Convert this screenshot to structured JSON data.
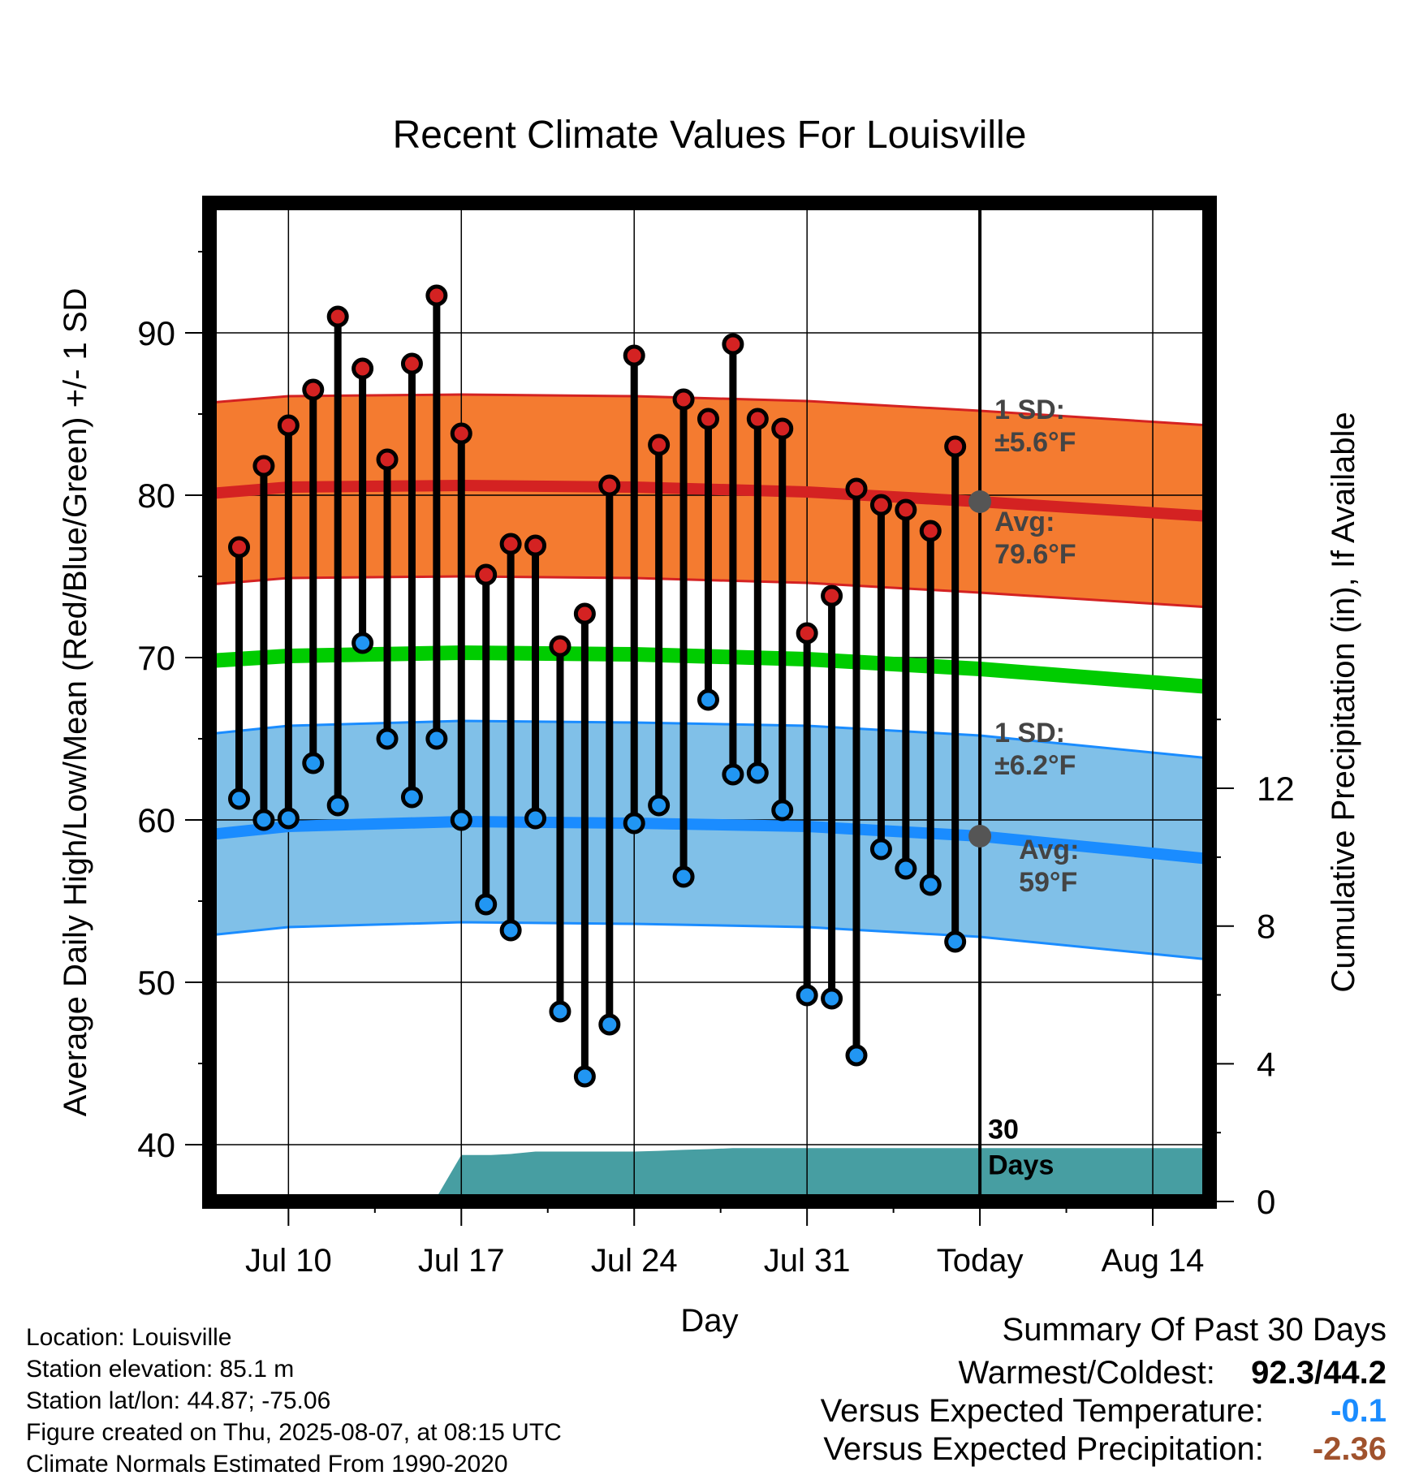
{
  "chart_data": {
    "type": "line",
    "title": "Recent Climate Values For Louisville",
    "xlabel": "Day",
    "ylabel": "Average Daily High/Low/Mean (Red/Blue/Green) +/- 1 SD",
    "ylabel_right": "Cumulative Precipitation (in), If Available",
    "x_tick_labels": [
      "Jul 10",
      "Jul 17",
      "Jul 24",
      "Jul 31",
      "Today",
      "Aug 14"
    ],
    "x_tick_days": [
      3,
      10,
      17,
      24,
      31,
      38
    ],
    "x_range": [
      -0.2,
      40.3
    ],
    "today_day": 31,
    "ylim": [
      36.5,
      98
    ],
    "y_ticks": [
      40,
      50,
      60,
      70,
      80,
      90
    ],
    "precip_ylim": [
      0,
      29
    ],
    "precip_ticks": [
      0,
      4,
      8,
      12
    ],
    "grid": true,
    "series": [
      {
        "name": "High",
        "day": [
          1,
          2,
          3,
          4,
          5,
          6,
          7,
          8,
          9,
          10,
          11,
          12,
          13,
          14,
          15,
          16,
          17,
          18,
          19,
          20,
          21,
          22,
          23,
          24,
          25,
          26,
          27,
          28,
          29,
          30
        ],
        "values": [
          76.8,
          81.8,
          84.3,
          86.5,
          91.0,
          87.8,
          82.2,
          88.1,
          92.3,
          83.8,
          75.1,
          77.0,
          76.9,
          70.7,
          72.7,
          80.6,
          88.6,
          83.1,
          85.9,
          84.7,
          89.3,
          84.7,
          84.1,
          71.5,
          73.8,
          80.4,
          79.4,
          79.1,
          77.8,
          83.0
        ]
      },
      {
        "name": "Low",
        "day": [
          1,
          2,
          3,
          4,
          5,
          6,
          7,
          8,
          9,
          10,
          11,
          12,
          13,
          14,
          15,
          16,
          17,
          18,
          19,
          20,
          21,
          22,
          23,
          24,
          25,
          26,
          27,
          28,
          29,
          30
        ],
        "values": [
          61.3,
          60.0,
          60.1,
          63.5,
          60.9,
          70.9,
          65.0,
          61.4,
          65.0,
          60.0,
          54.8,
          53.2,
          60.1,
          48.2,
          44.2,
          47.4,
          59.8,
          60.9,
          56.5,
          67.4,
          62.8,
          62.9,
          60.6,
          49.2,
          49.0,
          45.5,
          58.2,
          57.0,
          56.0,
          52.5
        ]
      },
      {
        "name": "Normal High",
        "day": [
          -0.2,
          3,
          10,
          17,
          24,
          31,
          40.3
        ],
        "values": [
          80.1,
          80.5,
          80.6,
          80.5,
          80.2,
          79.6,
          78.7
        ],
        "sd": 5.6
      },
      {
        "name": "Normal Mean",
        "day": [
          -0.2,
          3,
          10,
          17,
          24,
          31,
          40.3
        ],
        "values": [
          69.8,
          70.1,
          70.3,
          70.2,
          69.9,
          69.3,
          68.2
        ]
      },
      {
        "name": "Normal Low",
        "day": [
          -0.2,
          3,
          10,
          17,
          24,
          31,
          40.3
        ],
        "values": [
          59.1,
          59.6,
          59.9,
          59.8,
          59.6,
          59.0,
          57.6
        ],
        "sd": 6.2
      },
      {
        "name": "Cumulative Precipitation",
        "day": [
          -0.2,
          8.9,
          10,
          11.2,
          12,
          13,
          14,
          17,
          18,
          19,
          20,
          21,
          22,
          24,
          31,
          40.3
        ],
        "values": [
          0,
          0,
          1.35,
          1.35,
          1.38,
          1.45,
          1.45,
          1.45,
          1.47,
          1.5,
          1.52,
          1.55,
          1.55,
          1.55,
          1.55,
          1.55
        ]
      }
    ],
    "annotations": {
      "high_sd": "1 SD:\n±5.6°F",
      "high_avg": "Avg:\n79.6°F",
      "low_sd": "1 SD:\n±6.2°F",
      "low_avg": "Avg:\n59°F",
      "days": "30\nDays"
    },
    "colors": {
      "high_band": "#f47b30",
      "high_line": "#d42222",
      "low_band": "#80c0e8",
      "low_line": "#1a8cff",
      "mean_line": "#00cc00",
      "precip": "#479ea2",
      "high_dot": "#d42222",
      "low_dot": "#2196f3",
      "marker_today": "#555555"
    }
  },
  "info": {
    "location": "Location: Louisville",
    "elevation": "Station elevation: 85.1 m",
    "latlon": "Station lat/lon: 44.87; -75.06",
    "created": "Figure created on Thu, 2025-08-07, at 08:15 UTC",
    "normals": "Climate Normals Estimated From 1990-2020"
  },
  "summary": {
    "title": "Summary Of Past 30 Days",
    "warmest_label": "Warmest/Coldest:",
    "warmest_value": "92.3/44.2",
    "temp_label": "Versus Expected Temperature:",
    "temp_value": "-0.1",
    "temp_color": "#1a8cff",
    "precip_label": "Versus Expected Precipitation:",
    "precip_value": "-2.36",
    "precip_color": "#a0522d"
  }
}
